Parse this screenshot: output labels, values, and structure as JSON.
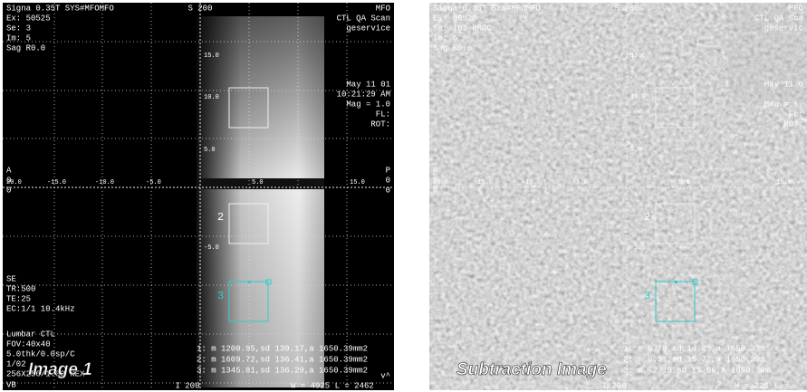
{
  "panels": [
    {
      "caption": "Image 1",
      "top_left": [
        "Signa 0.35T SYS#MFOMFO",
        "Ex: 50525",
        "Se: 3",
        "Im: 5",
        "Sag  R0.0"
      ],
      "top_center": "S 200",
      "top_right": [
        "MFO",
        "CTL QA Scan",
        "geservice"
      ],
      "info_right": [
        "May 11 01",
        "10:21:29 AM",
        "Mag = 1.0",
        "FL:",
        "ROT:"
      ],
      "left_mid": [
        "A",
        "0",
        "0"
      ],
      "right_mid": [
        "P",
        "0",
        "0"
      ],
      "axis_x": [
        "20.0",
        "-15.0",
        "-10.0",
        "-5.0",
        "5.0",
        "15.0"
      ],
      "axis_y": [
        "15.0",
        "10.0",
        "5.0",
        "-5.0"
      ],
      "bottom_left": [
        "SE",
        "TR:500",
        "TE:25",
        "EC:1/1 10.4kHz",
        "Lumbar CTL",
        "FOV:40x40",
        "5.0thk/0.0sp/C",
        "1/02",
        "256X256/1.00 NEX",
        "VB"
      ],
      "roi_labels": [
        "2",
        "3"
      ],
      "measurements": [
        "1: m  1200.95,sd 139.17,a 1650.39mm2",
        "2: m  1609.72,sd 136.41,a 1650.39mm2",
        "3: m  1345.81,sd 136.29,a 1650.39mm2"
      ],
      "bottom_center": "I 200",
      "window": "W =  4925 L =  2462",
      "bottom_right": "v^"
    },
    {
      "caption": "Subtraction Image",
      "top_left": [
        "Signa 0.35T SYS#MFOMFO",
        "Ex: 50525",
        "Se: 103 PROC",
        "Im: 5",
        "Sag  R0.0"
      ],
      "top_center": "S 200",
      "top_right": [
        "MFO",
        "CTL QA Sca",
        "geservic"
      ],
      "info_right": [
        "May 11 0",
        "",
        "Mag = 1.",
        "FL:",
        "ROT:"
      ],
      "left_mid": [
        "A",
        "0",
        "0"
      ],
      "axis_x": [
        "20.0",
        "-15.0",
        "-10.0",
        "-5.0",
        "5.0",
        "15.0"
      ],
      "axis_y": [
        "15.0",
        "10.0",
        "5.0",
        "-5.0"
      ],
      "bottom_left": [
        "(50525/3/5)-(50525/3/10)"
      ],
      "roi_labels": [
        "2",
        "3"
      ],
      "measurements": [
        "1: m  0.79,sd 14.85,a 1650.33m",
        "2: m  0.31,sd 15.77,a 1650.39m",
        "3: m  -2.10,sd 15.96,a 1650.39m"
      ],
      "bottom_center": "I 200",
      "window": "W =  226 L ="
    }
  ]
}
